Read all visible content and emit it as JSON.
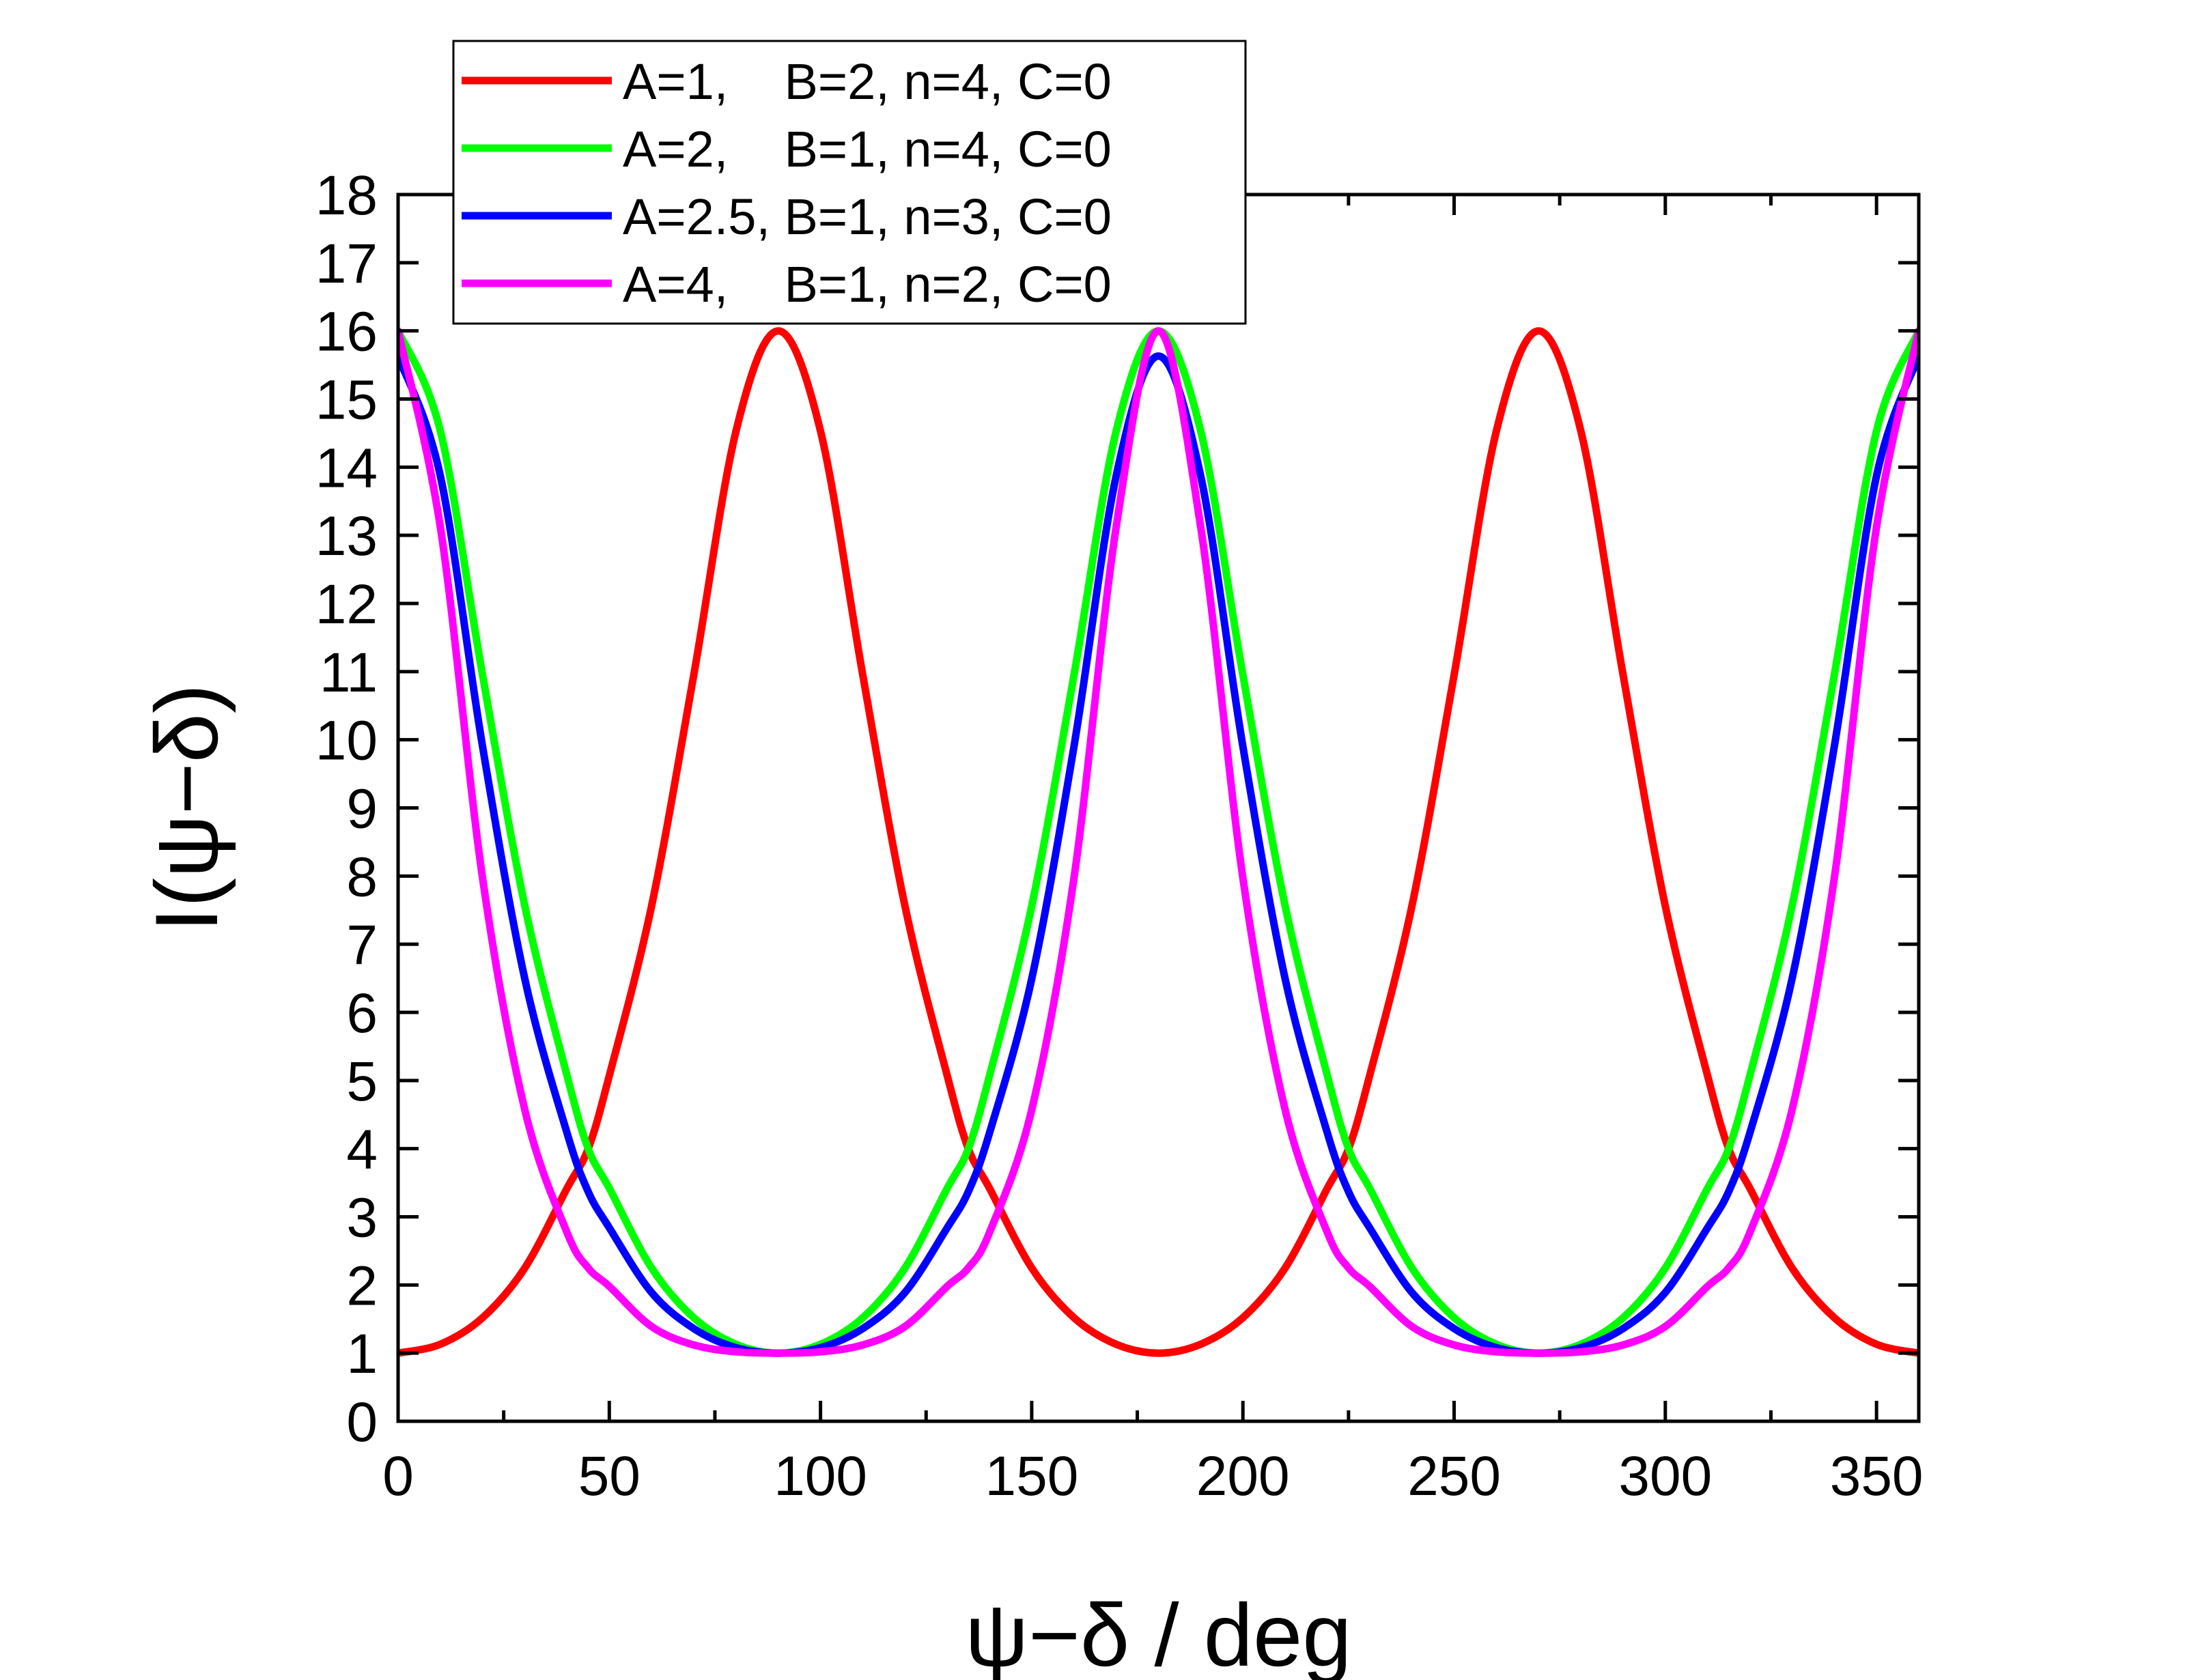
{
  "chart_data": {
    "type": "line",
    "xlabel": "ψ−δ / deg",
    "ylabel": "I(ψ−δ)",
    "xlim": [
      0,
      360
    ],
    "ylim": [
      0,
      18
    ],
    "x_ticks": [
      0,
      50,
      100,
      150,
      200,
      250,
      300,
      350
    ],
    "y_ticks": [
      0,
      1,
      2,
      3,
      4,
      5,
      6,
      7,
      8,
      9,
      10,
      11,
      12,
      13,
      14,
      15,
      16,
      17,
      18
    ],
    "grid": false,
    "legend_position": "top-left",
    "series": [
      {
        "name": "A=1,    B=2, n=4, C=0",
        "color": "#ff0000",
        "x": [
          0,
          10,
          20,
          30,
          40,
          45,
          50,
          60,
          70,
          80,
          90,
          100,
          110,
          120,
          130,
          135,
          140,
          150,
          160,
          170,
          180,
          190,
          200,
          210,
          220,
          225,
          230,
          240,
          250,
          260,
          270,
          280,
          290,
          300,
          310,
          315,
          320,
          330,
          340,
          350,
          360
        ],
        "y": [
          1.0,
          1.13,
          1.52,
          2.25,
          3.42,
          4.0,
          5.07,
          7.56,
          10.95,
          14.53,
          16.0,
          14.53,
          10.95,
          7.56,
          5.07,
          4.0,
          3.42,
          2.25,
          1.52,
          1.13,
          1.0,
          1.13,
          1.52,
          2.25,
          3.42,
          4.0,
          5.07,
          7.56,
          10.95,
          14.53,
          16.0,
          14.53,
          10.95,
          7.56,
          5.07,
          4.0,
          3.42,
          2.25,
          1.52,
          1.13,
          1.0
        ]
      },
      {
        "name": "A=2,    B=1, n=4, C=0",
        "color": "#00ff00",
        "x": [
          0,
          10,
          20,
          30,
          40,
          45,
          50,
          60,
          70,
          80,
          90,
          100,
          110,
          120,
          130,
          135,
          140,
          150,
          160,
          170,
          180,
          190,
          200,
          210,
          220,
          225,
          230,
          240,
          250,
          260,
          270,
          280,
          290,
          300,
          310,
          315,
          320,
          330,
          340,
          350,
          360
        ],
        "y": [
          16.0,
          14.53,
          10.95,
          7.56,
          5.07,
          4.0,
          3.42,
          2.25,
          1.52,
          1.13,
          1.0,
          1.13,
          1.52,
          2.25,
          3.42,
          4.0,
          5.07,
          7.56,
          10.95,
          14.53,
          16.0,
          14.53,
          10.95,
          7.56,
          5.07,
          4.0,
          3.42,
          2.25,
          1.52,
          1.13,
          1.0,
          1.13,
          1.52,
          2.25,
          3.42,
          4.0,
          5.07,
          7.56,
          10.95,
          14.53,
          16.0
        ]
      },
      {
        "name": "A=2.5, B=1, n=3, C=0",
        "color": "#0000ff",
        "x": [
          0,
          10,
          20,
          30,
          40,
          45,
          50,
          60,
          70,
          80,
          90,
          100,
          110,
          120,
          130,
          135,
          140,
          150,
          160,
          170,
          180,
          190,
          200,
          210,
          220,
          225,
          230,
          240,
          250,
          260,
          270,
          280,
          290,
          300,
          310,
          315,
          320,
          330,
          340,
          350,
          360
        ],
        "y": [
          15.63,
          13.87,
          9.9,
          6.49,
          4.23,
          3.37,
          2.84,
          1.89,
          1.36,
          1.08,
          1.0,
          1.08,
          1.36,
          1.89,
          2.84,
          3.37,
          4.23,
          6.49,
          9.9,
          13.87,
          15.63,
          13.87,
          9.9,
          6.49,
          4.23,
          3.37,
          2.84,
          1.89,
          1.36,
          1.08,
          1.0,
          1.08,
          1.36,
          1.89,
          2.84,
          3.37,
          4.23,
          6.49,
          9.9,
          13.87,
          15.63
        ]
      },
      {
        "name": "A=4,    B=1, n=2, C=0",
        "color": "#ff00ff",
        "x": [
          0,
          10,
          20,
          30,
          40,
          45,
          50,
          60,
          70,
          80,
          90,
          100,
          110,
          120,
          130,
          135,
          140,
          150,
          160,
          170,
          180,
          190,
          200,
          210,
          220,
          225,
          230,
          240,
          250,
          260,
          270,
          280,
          290,
          300,
          310,
          315,
          320,
          330,
          340,
          350,
          360
        ],
        "y": [
          16.0,
          13.12,
          7.97,
          4.57,
          2.77,
          2.25,
          1.98,
          1.39,
          1.12,
          1.02,
          1.0,
          1.02,
          1.12,
          1.39,
          1.98,
          2.25,
          2.77,
          4.57,
          7.97,
          13.12,
          16.0,
          13.12,
          7.97,
          4.57,
          2.77,
          2.25,
          1.98,
          1.39,
          1.12,
          1.02,
          1.0,
          1.02,
          1.12,
          1.39,
          1.98,
          2.25,
          2.77,
          4.57,
          7.97,
          13.12,
          16.0
        ]
      }
    ]
  }
}
